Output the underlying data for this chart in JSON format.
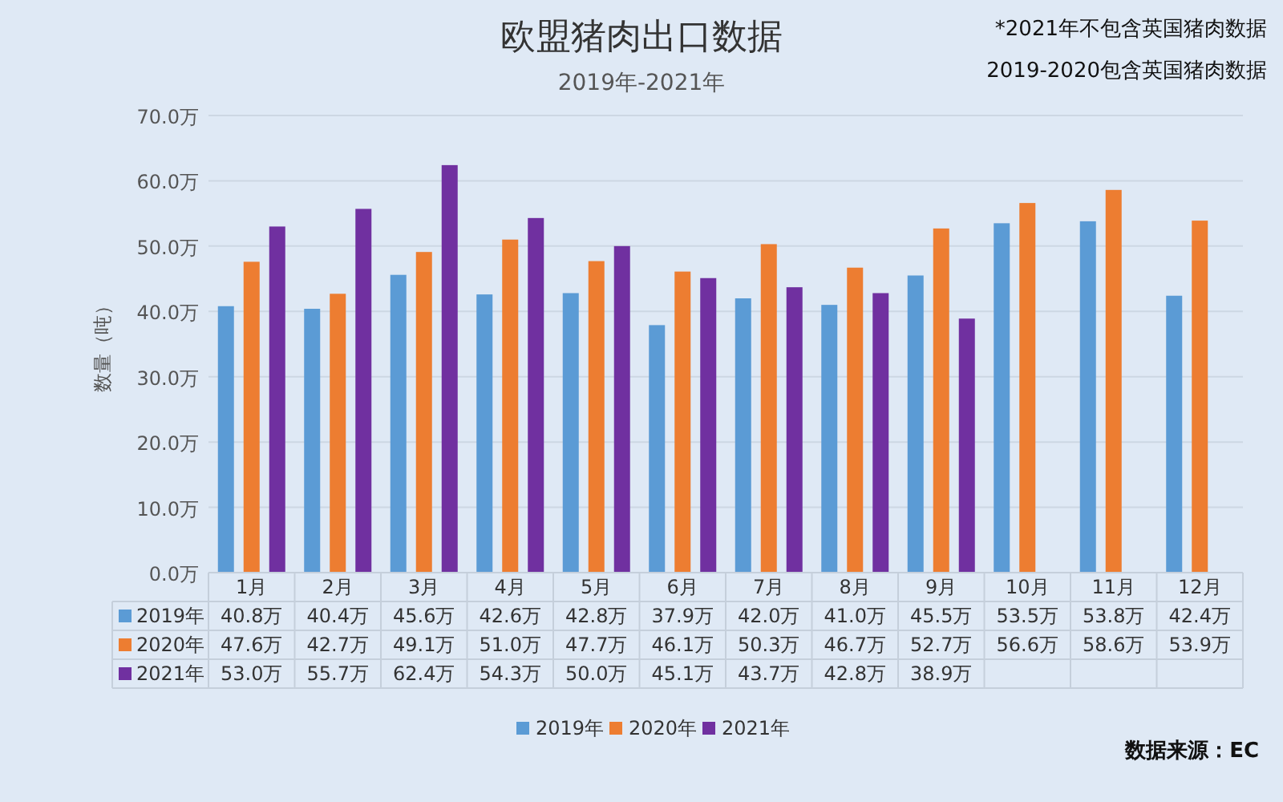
{
  "chart_data": {
    "type": "bar",
    "title": "欧盟猪肉出口数据",
    "subtitle": "2019年-2021年",
    "ylabel": "数量（吨）",
    "annotations": [
      "*2021年不包含英国猪肉数据",
      "2019-2020包含英国猪肉数据",
      "数据来源：EC"
    ],
    "categories": [
      "1月",
      "2月",
      "3月",
      "4月",
      "5月",
      "6月",
      "7月",
      "8月",
      "9月",
      "10月",
      "11月",
      "12月"
    ],
    "series": [
      {
        "name": "2019年",
        "color": "#5b9bd5",
        "values": [
          40.8,
          40.4,
          45.6,
          42.6,
          42.8,
          37.9,
          42.0,
          41.0,
          45.5,
          53.5,
          53.8,
          42.4
        ],
        "value_labels": [
          "40.8万",
          "40.4万",
          "45.6万",
          "42.6万",
          "42.8万",
          "37.9万",
          "42.0万",
          "41.0万",
          "45.5万",
          "53.5万",
          "53.8万",
          "42.4万"
        ]
      },
      {
        "name": "2020年",
        "color": "#ed7d31",
        "values": [
          47.6,
          42.7,
          49.1,
          51.0,
          47.7,
          46.1,
          50.3,
          46.7,
          52.7,
          56.6,
          58.6,
          53.9
        ],
        "value_labels": [
          "47.6万",
          "42.7万",
          "49.1万",
          "51.0万",
          "47.7万",
          "46.1万",
          "50.3万",
          "46.7万",
          "52.7万",
          "56.6万",
          "58.6万",
          "53.9万"
        ]
      },
      {
        "name": "2021年",
        "color": "#7030a0",
        "values": [
          53.0,
          55.7,
          62.4,
          54.3,
          50.0,
          45.1,
          43.7,
          42.8,
          38.9,
          null,
          null,
          null
        ],
        "value_labels": [
          "53.0万",
          "55.7万",
          "62.4万",
          "54.3万",
          "50.0万",
          "45.1万",
          "43.7万",
          "42.8万",
          "38.9万",
          null,
          null,
          null
        ]
      }
    ],
    "ylim": [
      0,
      70
    ],
    "yticks": [
      {
        "value": 0,
        "label": "0.0万"
      },
      {
        "value": 10,
        "label": "10.0万"
      },
      {
        "value": 20,
        "label": "20.0万"
      },
      {
        "value": 30,
        "label": "30.0万"
      },
      {
        "value": 40,
        "label": "40.0万"
      },
      {
        "value": 50,
        "label": "50.0万"
      },
      {
        "value": 60,
        "label": "60.0万"
      },
      {
        "value": 70,
        "label": "70.0万"
      }
    ],
    "grid": "y",
    "legend": "bottom"
  }
}
